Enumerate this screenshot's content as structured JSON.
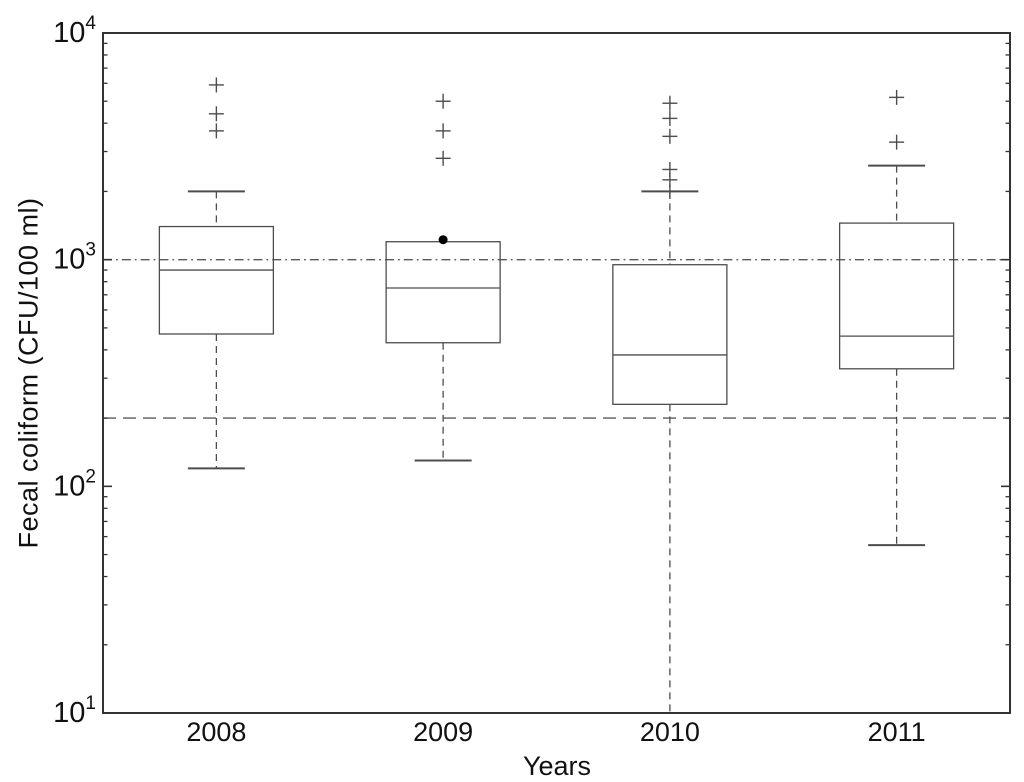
{
  "axes": {
    "ylabel": "Fecal coliform (CFU/100 ml)",
    "xlabel": "Years"
  },
  "chart_data": {
    "type": "boxplot",
    "title": "",
    "yscale": "log",
    "ylim": [
      10,
      10000
    ],
    "y_major_tick_exponents": [
      1,
      2,
      3,
      4
    ],
    "y_minor_tick_multipliers": [
      2,
      3,
      4,
      5,
      6,
      7,
      8,
      9
    ],
    "grid": false,
    "categories": [
      "2008",
      "2009",
      "2010",
      "2011"
    ],
    "series": [
      {
        "category": "2008",
        "whisker_low": 120,
        "q1": 470,
        "median": 900,
        "q3": 1400,
        "whisker_high": 2000,
        "lower_cap": true,
        "upper_cap": true,
        "outliers": [
          3700,
          4400,
          5900
        ]
      },
      {
        "category": "2009",
        "whisker_low": 130,
        "q1": 430,
        "median": 750,
        "q3": 1200,
        "whisker_high": 1200,
        "lower_cap": true,
        "upper_cap": false,
        "outliers": [
          2800,
          3700,
          5000
        ],
        "mean_marker": 1200
      },
      {
        "category": "2010",
        "whisker_low": 10,
        "q1": 230,
        "median": 380,
        "q3": 950,
        "whisker_high": 2000,
        "lower_cap": false,
        "upper_cap": true,
        "outliers": [
          2000,
          2250,
          2500,
          3500,
          4200,
          4900
        ]
      },
      {
        "category": "2011",
        "whisker_low": 55,
        "q1": 330,
        "median": 460,
        "q3": 1450,
        "whisker_high": 2600,
        "lower_cap": true,
        "upper_cap": true,
        "outliers": [
          3300,
          5200
        ]
      }
    ],
    "reference_lines": [
      {
        "value": 1000,
        "style": "dash-dot"
      },
      {
        "value": 200,
        "style": "dashed"
      }
    ],
    "colors": {
      "box": "#4d4d4d",
      "axis": "#333333",
      "text": "#111111",
      "reference": "#595959",
      "mean_dot": "#000000"
    }
  }
}
